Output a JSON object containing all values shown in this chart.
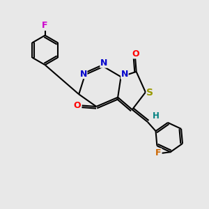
{
  "background_color": "#e8e8e8",
  "bond_color": "#000000",
  "bond_width": 1.5,
  "atom_colors": {
    "N": "#0000cc",
    "O": "#ff0000",
    "S": "#999900",
    "F1": "#cc00cc",
    "F2": "#cc6600",
    "H": "#008080",
    "C": "#000000"
  },
  "fig_width": 3.0,
  "fig_height": 3.0,
  "dpi": 100
}
